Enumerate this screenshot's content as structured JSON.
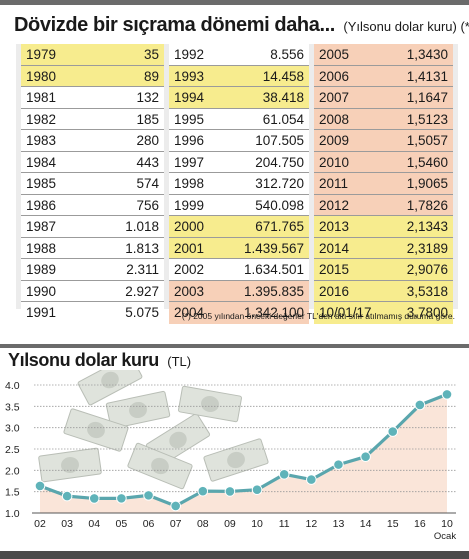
{
  "header": {
    "title": "Dövizde bir sıçrama dönemi daha...",
    "subtitle": "(Yılsonu dolar kuru) (*)"
  },
  "table": {
    "col1": [
      {
        "year": "1979",
        "value": "35",
        "hl": "yellow"
      },
      {
        "year": "1980",
        "value": "89",
        "hl": "yellow"
      },
      {
        "year": "1981",
        "value": "132",
        "hl": "white"
      },
      {
        "year": "1982",
        "value": "185",
        "hl": "white"
      },
      {
        "year": "1983",
        "value": "280",
        "hl": "white"
      },
      {
        "year": "1984",
        "value": "443",
        "hl": "white"
      },
      {
        "year": "1985",
        "value": "574",
        "hl": "white"
      },
      {
        "year": "1986",
        "value": "756",
        "hl": "white"
      },
      {
        "year": "1987",
        "value": "1.018",
        "hl": "white"
      },
      {
        "year": "1988",
        "value": "1.813",
        "hl": "white"
      },
      {
        "year": "1989",
        "value": "2.311",
        "hl": "white"
      },
      {
        "year": "1990",
        "value": "2.927",
        "hl": "white"
      },
      {
        "year": "1991",
        "value": "5.075",
        "hl": "white"
      }
    ],
    "col2": [
      {
        "year": "1992",
        "value": "8.556",
        "hl": "white"
      },
      {
        "year": "1993",
        "value": "14.458",
        "hl": "yellow"
      },
      {
        "year": "1994",
        "value": "38.418",
        "hl": "yellow"
      },
      {
        "year": "1995",
        "value": "61.054",
        "hl": "white"
      },
      {
        "year": "1996",
        "value": "107.505",
        "hl": "white"
      },
      {
        "year": "1997",
        "value": "204.750",
        "hl": "white"
      },
      {
        "year": "1998",
        "value": "312.720",
        "hl": "white"
      },
      {
        "year": "1999",
        "value": "540.098",
        "hl": "white"
      },
      {
        "year": "2000",
        "value": "671.765",
        "hl": "yellow"
      },
      {
        "year": "2001",
        "value": "1.439.567",
        "hl": "yellow"
      },
      {
        "year": "2002",
        "value": "1.634.501",
        "hl": "white"
      },
      {
        "year": "2003",
        "value": "1.395.835",
        "hl": "orange"
      },
      {
        "year": "2004",
        "value": "1.342.100",
        "hl": "orange"
      }
    ],
    "col3": [
      {
        "year": "2005",
        "value": "1,3430",
        "hl": "orange"
      },
      {
        "year": "2006",
        "value": "1,4131",
        "hl": "orange"
      },
      {
        "year": "2007",
        "value": "1,1647",
        "hl": "orange"
      },
      {
        "year": "2008",
        "value": "1,5123",
        "hl": "orange"
      },
      {
        "year": "2009",
        "value": "1,5057",
        "hl": "orange"
      },
      {
        "year": "2010",
        "value": "1,5460",
        "hl": "orange"
      },
      {
        "year": "2011",
        "value": "1,9065",
        "hl": "orange"
      },
      {
        "year": "2012",
        "value": "1,7826",
        "hl": "orange"
      },
      {
        "year": "2013",
        "value": "2,1343",
        "hl": "yellow"
      },
      {
        "year": "2014",
        "value": "2,3189",
        "hl": "yellow"
      },
      {
        "year": "2015",
        "value": "2,9076",
        "hl": "yellow"
      },
      {
        "year": "2016",
        "value": "3,5318",
        "hl": "yellow"
      },
      {
        "year": "10/01/17",
        "value": "3,7800",
        "hl": "yellow"
      }
    ]
  },
  "footnote": "(*) 2005 yılından önceki değerler TL'den altı sıfır atılmamış duruma göre.",
  "chart_title": "Yılsonu dolar kuru",
  "chart_unit": "(TL)",
  "chart_data": {
    "type": "area",
    "title": "Yılsonu dolar kuru",
    "ylabel": "(TL)",
    "ylim": [
      1.0,
      4.0
    ],
    "yticks": [
      "1.0",
      "1.5",
      "2.0",
      "2.5",
      "3.0",
      "3.5",
      "4.0"
    ],
    "categories": [
      "02",
      "03",
      "04",
      "05",
      "06",
      "07",
      "08",
      "09",
      "10",
      "11",
      "12",
      "13",
      "14",
      "15",
      "16",
      "10"
    ],
    "last_category_sublabel": "Ocak",
    "values": [
      1.634,
      1.396,
      1.342,
      1.343,
      1.413,
      1.165,
      1.512,
      1.506,
      1.546,
      1.907,
      1.783,
      2.134,
      2.319,
      2.908,
      3.532,
      3.78
    ],
    "grid": true,
    "colors": {
      "line": "#5aa6ad",
      "marker": "#5fb3b9",
      "fill": "#f9e2d5"
    }
  }
}
